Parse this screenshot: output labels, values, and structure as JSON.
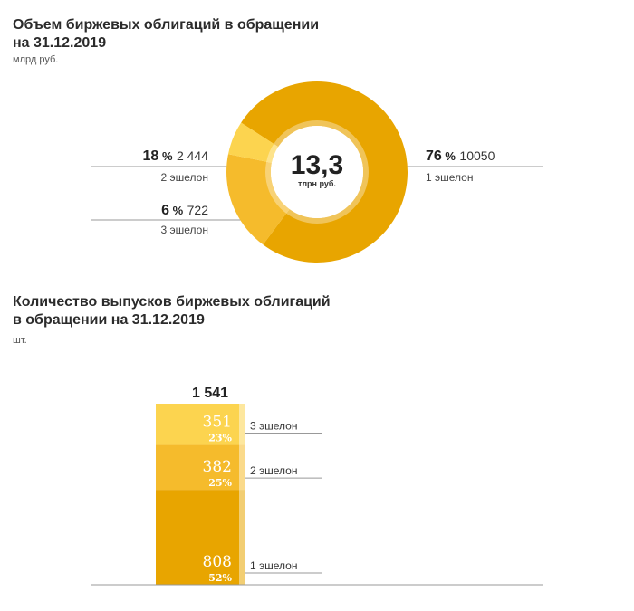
{
  "section1": {
    "title_line1": "Объем биржевых облигаций в обращении",
    "title_line2": "на 31.12.2019",
    "unit": "млрд руб.",
    "center_value": "13,3",
    "center_unit": "тлрн руб."
  },
  "section2": {
    "title_line1": "Количество выпусков биржевых облигаций",
    "title_line2": "в обращении на 31.12.2019",
    "unit": "шт.",
    "total": "1 541"
  },
  "chart_data": [
    {
      "type": "pie",
      "title": "Объем биржевых облигаций в обращении на 31.12.2019",
      "unit": "млрд руб.",
      "center_label": "13,3 тлрн руб.",
      "slices": [
        {
          "name": "1 эшелон",
          "percent": 76,
          "percent_label": "76",
          "value": 10050,
          "value_label": "10050",
          "color": "#e8a500"
        },
        {
          "name": "2 эшелон",
          "percent": 18,
          "percent_label": "18",
          "value": 2444,
          "value_label": "2 444",
          "color": "#f5bb2c"
        },
        {
          "name": "3 эшелон",
          "percent": 6,
          "percent_label": "6",
          "value": 722,
          "value_label": "722",
          "color": "#fcd44f"
        }
      ]
    },
    {
      "type": "bar",
      "stacked": true,
      "title": "Количество выпусков биржевых облигаций в обращении на 31.12.2019",
      "unit": "шт.",
      "total": 1541,
      "segments": [
        {
          "name": "3 эшелон",
          "value": 351,
          "percent_label": "23%",
          "color": "#fcd44f"
        },
        {
          "name": "2 эшелон",
          "value": 382,
          "percent_label": "25%",
          "color": "#f5bb2c"
        },
        {
          "name": "1 эшелон",
          "value": 808,
          "percent_label": "52%",
          "color": "#e8a500"
        }
      ]
    }
  ]
}
